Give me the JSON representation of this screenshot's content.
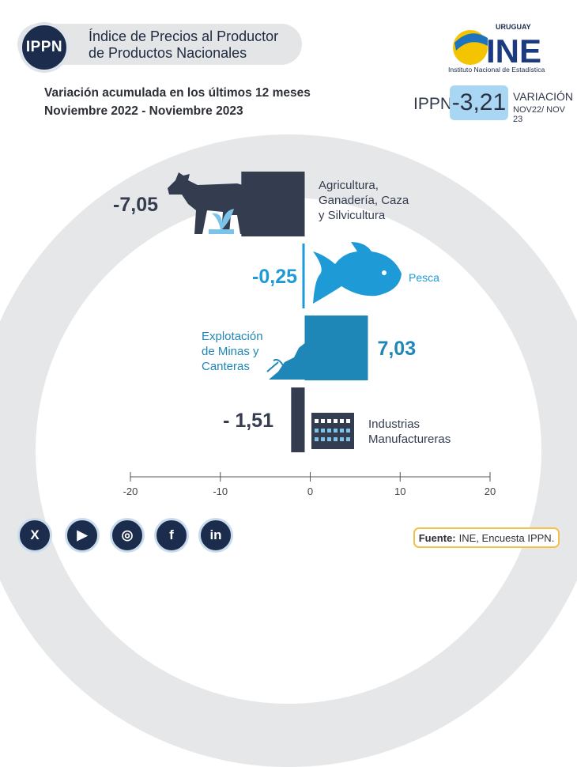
{
  "header": {
    "badge": "IPPN",
    "title_line1": "Índice de Precios al Productor",
    "title_line2": "de Productos Nacionales",
    "subtitle_line1": "Variación acumulada en los últimos 12 meses",
    "subtitle_line2": "Noviembre 2022 - Noviembre 2023"
  },
  "logo": {
    "top_text": "URUGUAY",
    "letters": "INE",
    "caption": "Instituto Nacional de Estadística"
  },
  "summary": {
    "label": "IPPN",
    "value": "-3,21",
    "var_label": "VARIACIÓN",
    "period": "NOV22/ NOV 23"
  },
  "chart_data": {
    "type": "bar",
    "orientation": "horizontal",
    "categories": [
      "Agricultura, Ganadería, Caza y Silvicultura",
      "Pesca",
      "Explotación de Minas y Canteras",
      "Industrias Manufactureras"
    ],
    "values": [
      -7.05,
      -0.25,
      7.03,
      -1.51
    ],
    "value_labels": [
      "-7,05",
      "-0,25",
      "7,03",
      "- 1,51"
    ],
    "label_lines": [
      [
        "Agricultura,",
        "Ganadería, Caza",
        "y Silvicultura"
      ],
      [
        "Pesca"
      ],
      [
        "Explotación",
        "de Minas y",
        "Canteras"
      ],
      [
        "Industrias",
        "Manufactureras"
      ]
    ],
    "colors": [
      "#343c50",
      "#1e9bd7",
      "#1f86b8",
      "#343c50"
    ],
    "xlim": [
      -20,
      20
    ],
    "xticks": [
      -20,
      -10,
      0,
      10,
      20
    ]
  },
  "icons": [
    "cow-icon",
    "plant-icon",
    "fish-icon",
    "rock-icon",
    "pickaxe-icon",
    "factory-icon"
  ],
  "social": [
    {
      "name": "x-icon",
      "glyph": "X"
    },
    {
      "name": "youtube-icon",
      "glyph": "▶"
    },
    {
      "name": "instagram-icon",
      "glyph": "◎"
    },
    {
      "name": "facebook-icon",
      "glyph": "f"
    },
    {
      "name": "linkedin-icon",
      "glyph": "in"
    }
  ],
  "source": {
    "label": "Fuente:",
    "text": "INE, Encuesta IPPN."
  }
}
